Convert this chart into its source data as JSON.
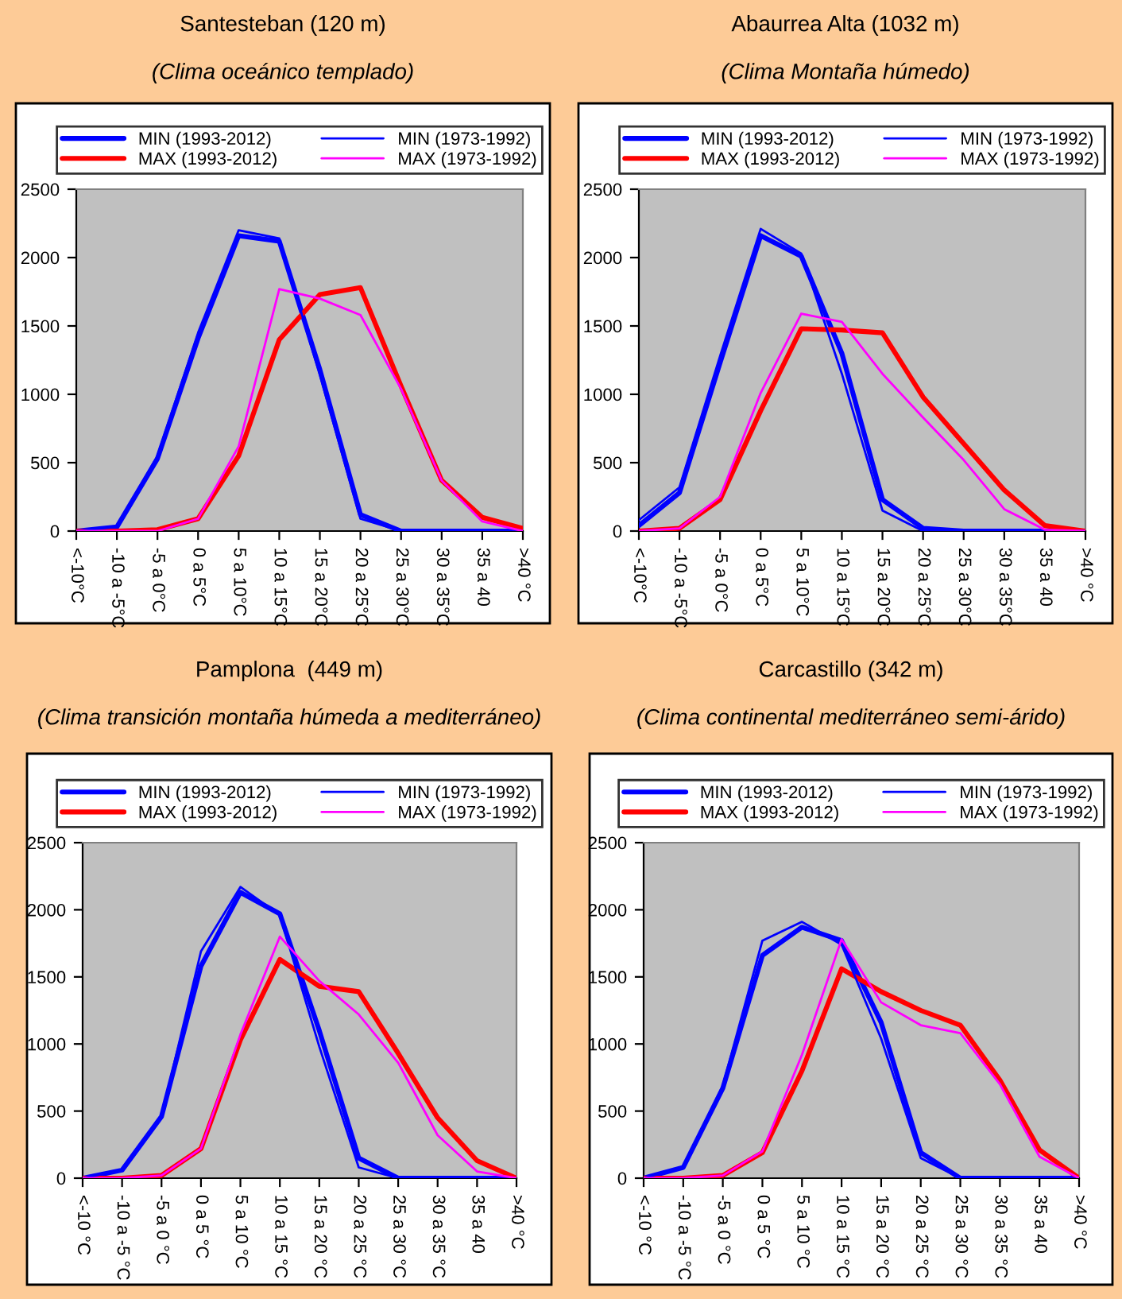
{
  "chart_data": [
    {
      "type": "line",
      "title": "Santesteban (120 m)",
      "subtitle": "(Clima oceánico templado)",
      "legend": "top",
      "ylim": [
        0,
        2500
      ],
      "yticks": [
        0,
        500,
        1000,
        1500,
        2000,
        2500
      ],
      "categories": [
        "<-10°C",
        "-10 a -5°C",
        "-5 a 0°C",
        "0 a 5°C",
        "5 a 10°C",
        "10 a 15°C",
        "15 a 20°C",
        "20 a 25°C",
        "25 a 30°C",
        "30 a 35°C",
        "35 a 40",
        ">40 °C"
      ],
      "series": [
        {
          "name": "MIN (1993-2012)",
          "color": "#0000ff",
          "values": [
            0,
            30,
            530,
            1410,
            2160,
            2120,
            1180,
            120,
            0,
            0,
            0,
            0
          ]
        },
        {
          "name": "MIN (1973-1992)",
          "color": "#0000ff",
          "values": [
            0,
            30,
            550,
            1450,
            2200,
            2140,
            1140,
            90,
            0,
            0,
            0,
            0
          ]
        },
        {
          "name": "MAX (1993-2012)",
          "color": "#ff0000",
          "values": [
            0,
            0,
            10,
            90,
            550,
            1400,
            1730,
            1780,
            1060,
            370,
            100,
            20
          ]
        },
        {
          "name": "MAX (1973-1992)",
          "color": "#ff00ff",
          "values": [
            0,
            0,
            0,
            90,
            620,
            1770,
            1700,
            1580,
            1040,
            370,
            70,
            0
          ]
        }
      ]
    },
    {
      "type": "line",
      "title": "Abaurrea Alta (1032 m)",
      "subtitle": "(Clima Montaña húmedo)",
      "legend": "top",
      "ylim": [
        0,
        2500
      ],
      "yticks": [
        0,
        500,
        1000,
        1500,
        2000,
        2500
      ],
      "categories": [
        "<-10°C",
        "-10 a -5°C",
        "-5 a 0°C",
        "0 a 5°C",
        "5 a 10°C",
        "10 a 15°C",
        "15 a 20°C",
        "20 a 25°C",
        "25 a 30°C",
        "30 a 35°C",
        "35 a 40",
        ">40 °C"
      ],
      "series": [
        {
          "name": "MIN (1993-2012)",
          "color": "#0000ff",
          "values": [
            40,
            280,
            1230,
            2160,
            2010,
            1300,
            230,
            20,
            0,
            0,
            0,
            0
          ]
        },
        {
          "name": "MIN (1973-1992)",
          "color": "#0000ff",
          "values": [
            80,
            320,
            1280,
            2210,
            2030,
            1150,
            150,
            0,
            0,
            0,
            0,
            0
          ]
        },
        {
          "name": "MAX (1993-2012)",
          "color": "#ff0000",
          "values": [
            0,
            20,
            230,
            880,
            1480,
            1470,
            1450,
            980,
            640,
            300,
            40,
            0
          ]
        },
        {
          "name": "MAX (1973-1992)",
          "color": "#ff00ff",
          "values": [
            0,
            20,
            250,
            1010,
            1590,
            1530,
            1150,
            830,
            520,
            160,
            10,
            0
          ]
        }
      ]
    },
    {
      "type": "line",
      "title": "Pamplona  (449 m)",
      "subtitle": "(Clima transición montaña húmeda a mediterráneo)",
      "legend": "top",
      "ylim": [
        0,
        2500
      ],
      "yticks": [
        0,
        500,
        1000,
        1500,
        2000,
        2500
      ],
      "categories": [
        "<-10 °C",
        "-10 a -5 °C",
        "-5 a 0 °C",
        "0 a 5 °C",
        "5 a 10 °C",
        "10 a 15 °C",
        "15 a 20 °C",
        "20 a 25 °C",
        "25 a 30 °C",
        "30 a 35 °C",
        "35 a 40",
        ">40 °C"
      ],
      "series": [
        {
          "name": "MIN (1993-2012)",
          "color": "#0000ff",
          "values": [
            0,
            60,
            460,
            1580,
            2130,
            1970,
            1100,
            150,
            0,
            0,
            0,
            0
          ]
        },
        {
          "name": "MIN (1973-1992)",
          "color": "#0000ff",
          "values": [
            0,
            60,
            460,
            1690,
            2170,
            1960,
            980,
            80,
            0,
            0,
            0,
            0
          ]
        },
        {
          "name": "MAX (1993-2012)",
          "color": "#ff0000",
          "values": [
            0,
            0,
            20,
            220,
            1030,
            1630,
            1430,
            1390,
            930,
            450,
            130,
            0
          ]
        },
        {
          "name": "MAX (1973-1992)",
          "color": "#ff00ff",
          "values": [
            0,
            0,
            20,
            220,
            1070,
            1800,
            1470,
            1220,
            860,
            320,
            50,
            0
          ]
        }
      ]
    },
    {
      "type": "line",
      "title": "Carcastillo (342 m)",
      "subtitle": "(Clima continental mediterráneo semi-árido)",
      "legend": "top",
      "ylim": [
        0,
        2500
      ],
      "yticks": [
        0,
        500,
        1000,
        1500,
        2000,
        2500
      ],
      "categories": [
        "<-10 °C",
        "-10 a -5 °C",
        "-5 a 0 °C",
        "0 a 5 °C",
        "5 a 10 °C",
        "10 a 15 °C",
        "15 a 20 °C",
        "20 a 25 °C",
        "25 a 30 °C",
        "30 a 35 °C",
        "35 a 40",
        ">40 °C"
      ],
      "series": [
        {
          "name": "MIN (1993-2012)",
          "color": "#0000ff",
          "values": [
            0,
            80,
            670,
            1660,
            1870,
            1770,
            1160,
            190,
            0,
            0,
            0,
            0
          ]
        },
        {
          "name": "MIN (1973-1992)",
          "color": "#0000ff",
          "values": [
            0,
            80,
            690,
            1770,
            1910,
            1740,
            1040,
            150,
            0,
            0,
            0,
            0
          ]
        },
        {
          "name": "MAX (1993-2012)",
          "color": "#ff0000",
          "values": [
            0,
            0,
            20,
            190,
            800,
            1560,
            1390,
            1250,
            1140,
            730,
            210,
            0
          ]
        },
        {
          "name": "MAX (1973-1992)",
          "color": "#ff00ff",
          "values": [
            0,
            0,
            20,
            200,
            920,
            1780,
            1310,
            1140,
            1080,
            700,
            160,
            0
          ]
        }
      ]
    }
  ]
}
